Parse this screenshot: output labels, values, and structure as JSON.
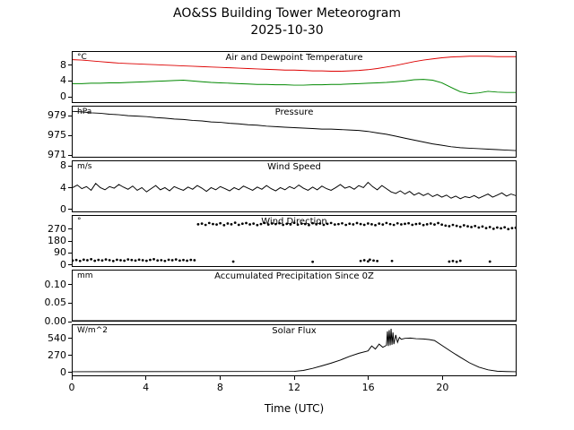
{
  "chart_data": {
    "type": "line",
    "title": "AO&SS Building Tower Meteorogram",
    "date": "2025-10-30",
    "xlabel": "Time (UTC)",
    "x_range": [
      0,
      24
    ],
    "xticks": [
      0,
      4,
      8,
      12,
      16,
      20
    ],
    "xtick_labels": [
      "0",
      "4",
      "8",
      "12",
      "16",
      "20"
    ],
    "grid": false,
    "legend": "none",
    "panels": [
      {
        "title": "Air and Dewpoint Temperature",
        "unit": "°C",
        "ylim": [
          -1.5,
          11.5
        ],
        "yticks": [
          0,
          4,
          8
        ],
        "ytick_labels": [
          "0",
          "4",
          "8"
        ],
        "series": [
          {
            "name": "air-temperature-line",
            "type": "line",
            "color": "#dd0000",
            "x_start": 0,
            "x_step": 0.5,
            "y": [
              9.5,
              9.4,
              9.2,
              9.0,
              8.8,
              8.6,
              8.5,
              8.4,
              8.3,
              8.2,
              8.1,
              8.0,
              7.9,
              7.8,
              7.7,
              7.6,
              7.5,
              7.4,
              7.3,
              7.2,
              7.1,
              7.0,
              6.9,
              6.8,
              6.8,
              6.7,
              6.6,
              6.6,
              6.5,
              6.5,
              6.6,
              6.7,
              6.9,
              7.2,
              7.6,
              8.0,
              8.5,
              9.0,
              9.4,
              9.7,
              10.0,
              10.2,
              10.3,
              10.4,
              10.4,
              10.4,
              10.3,
              10.3,
              10.3
            ]
          },
          {
            "name": "dewpoint-line",
            "type": "line",
            "color": "#008800",
            "x_start": 0,
            "x_step": 0.5,
            "y": [
              3.3,
              3.3,
              3.4,
              3.4,
              3.5,
              3.5,
              3.6,
              3.7,
              3.8,
              3.9,
              4.0,
              4.1,
              4.2,
              4.0,
              3.8,
              3.6,
              3.5,
              3.4,
              3.3,
              3.2,
              3.1,
              3.1,
              3.0,
              3.0,
              2.9,
              2.9,
              3.0,
              3.0,
              3.1,
              3.1,
              3.2,
              3.3,
              3.4,
              3.5,
              3.6,
              3.8,
              4.0,
              4.3,
              4.4,
              4.2,
              3.5,
              2.3,
              1.2,
              0.7,
              0.9,
              1.3,
              1.1,
              1.0,
              1.0
            ]
          }
        ]
      },
      {
        "title": "Pressure",
        "unit": "hPa",
        "ylim": [
          970.5,
          981
        ],
        "yticks": [
          971,
          975,
          979
        ],
        "ytick_labels": [
          "971",
          "975",
          "979"
        ],
        "series": [
          {
            "name": "pressure-line",
            "type": "line",
            "color": "#000000",
            "x_start": 0,
            "x_step": 0.5,
            "y": [
              980.0,
              979.9,
              979.7,
              979.6,
              979.4,
              979.3,
              979.1,
              979.0,
              978.9,
              978.7,
              978.6,
              978.4,
              978.3,
              978.1,
              978.0,
              977.8,
              977.7,
              977.5,
              977.4,
              977.2,
              977.1,
              976.9,
              976.8,
              976.7,
              976.6,
              976.5,
              976.4,
              976.3,
              976.3,
              976.2,
              976.1,
              976.0,
              975.8,
              975.5,
              975.2,
              974.8,
              974.4,
              974.0,
              973.6,
              973.2,
              972.9,
              972.6,
              972.4,
              972.3,
              972.2,
              972.1,
              972.0,
              971.9,
              971.8
            ]
          }
        ]
      },
      {
        "title": "Wind Speed",
        "unit": "m/s",
        "ylim": [
          -0.5,
          9
        ],
        "yticks": [
          0,
          4,
          8
        ],
        "ytick_labels": [
          "0",
          "4",
          "8"
        ],
        "series": [
          {
            "name": "wind-speed-line",
            "type": "line",
            "color": "#000000",
            "x_start": 0,
            "x_step": 0.25,
            "y": [
              4.0,
              4.5,
              3.8,
              4.2,
              3.5,
              4.8,
              4.0,
              3.6,
              4.2,
              3.9,
              4.6,
              4.1,
              3.7,
              4.3,
              3.5,
              4.0,
              3.2,
              3.8,
              4.4,
              3.6,
              4.0,
              3.4,
              4.2,
              3.8,
              3.5,
              4.1,
              3.7,
              4.4,
              3.9,
              3.3,
              4.0,
              3.6,
              4.2,
              3.8,
              3.4,
              4.0,
              3.6,
              4.3,
              3.9,
              3.5,
              4.1,
              3.7,
              4.4,
              3.8,
              3.4,
              4.0,
              3.6,
              4.2,
              3.8,
              4.5,
              3.9,
              3.5,
              4.1,
              3.6,
              4.3,
              3.8,
              3.5,
              4.0,
              4.6,
              3.9,
              4.2,
              3.7,
              4.4,
              4.0,
              5.0,
              4.2,
              3.6,
              4.4,
              3.8,
              3.2,
              2.9,
              3.4,
              2.8,
              3.3,
              2.6,
              3.0,
              2.5,
              2.9,
              2.3,
              2.7,
              2.2,
              2.6,
              2.0,
              2.4,
              1.9,
              2.3,
              2.1,
              2.5,
              2.0,
              2.4,
              2.8,
              2.2,
              2.6,
              3.0,
              2.4,
              2.8,
              2.5
            ]
          }
        ]
      },
      {
        "title": "Wind Direction",
        "unit": "°",
        "ylim": [
          -15,
          375
        ],
        "yticks": [
          0,
          90,
          180,
          270
        ],
        "ytick_labels": [
          "0",
          "90",
          "180",
          "270"
        ],
        "series": [
          {
            "name": "wind-direction-early-points",
            "type": "scatter",
            "color": "#000000",
            "x_start": 0,
            "x_step": 0.2,
            "y": [
              28,
              32,
              25,
              35,
              30,
              38,
              26,
              33,
              29,
              36,
              31,
              24,
              34,
              30,
              27,
              37,
              32,
              28,
              35,
              30,
              26,
              33,
              38,
              29,
              31,
              25,
              34,
              30,
              36,
              28,
              32,
              27,
              33,
              30
            ]
          },
          {
            "name": "wind-direction-main-points",
            "type": "scatter",
            "color": "#000000",
            "x_start": 6.8,
            "x_step": 0.2,
            "y": [
              310,
              315,
              305,
              320,
              312,
              308,
              318,
              303,
              316,
              310,
              322,
              306,
              314,
              319,
              309,
              315,
              304,
              312,
              320,
              308,
              316,
              311,
              318,
              305,
              313,
              309,
              321,
              307,
              315,
              312,
              304,
              318,
              310,
              316,
              306,
              313,
              320,
              308,
              311,
              317,
              305,
              314,
              309,
              319,
              312,
              306,
              316,
              310,
              303,
              315,
              308,
              320,
              311,
              305,
              317,
              309,
              313,
              318,
              306,
              312,
              315,
              304,
              310,
              316,
              308,
              319,
              307,
              300,
              295,
              305,
              298,
              290,
              302,
              294,
              288,
              296,
              285,
              292,
              280,
              288,
              275,
              284,
              278,
              286,
              272,
              280,
              283
            ]
          },
          {
            "name": "wind-direction-low-outlier-points",
            "type": "scatter",
            "color": "#000000",
            "x": [
              8.7,
              13.0,
              15.6,
              15.8,
              16.0,
              16.1,
              16.3,
              16.5,
              17.3,
              20.4,
              20.6,
              20.8,
              21.0,
              22.6
            ],
            "y": [
              20,
              18,
              25,
              30,
              22,
              35,
              28,
              24,
              25,
              20,
              24,
              18,
              26,
              20
            ]
          }
        ]
      },
      {
        "title": "Accumulated Precipitation Since 0Z",
        "unit": "mm",
        "ylim": [
          0,
          0.14
        ],
        "yticks": [
          0,
          0.05,
          0.1
        ],
        "ytick_labels": [
          "0.00",
          "0.05",
          "0.10"
        ],
        "series": [
          {
            "name": "precipitation-line",
            "type": "line",
            "color": "#000000",
            "x": [
              0,
              24
            ],
            "y": [
              0,
              0
            ]
          }
        ]
      },
      {
        "title": "Solar Flux",
        "unit": "W/m^2",
        "ylim": [
          -60,
          760
        ],
        "yticks": [
          0,
          270,
          540
        ],
        "ytick_labels": [
          "0",
          "270",
          "540"
        ],
        "series": [
          {
            "name": "solar-flux-line",
            "type": "line",
            "color": "#000000",
            "x": [
              0,
              12,
              12.5,
              13,
              13.5,
              14,
              14.5,
              15,
              15.5,
              16,
              16.2,
              16.4,
              16.6,
              16.8,
              17.0,
              17.05,
              17.1,
              17.15,
              17.2,
              17.25,
              17.3,
              17.35,
              17.4,
              17.5,
              17.6,
              17.7,
              17.8,
              18.0,
              18.3,
              18.6,
              19.0,
              19.3,
              19.6,
              20.0,
              20.5,
              21.0,
              21.5,
              22.0,
              22.5,
              23.0,
              23.5,
              24.0
            ],
            "y": [
              0,
              5,
              20,
              55,
              95,
              140,
              190,
              250,
              300,
              340,
              420,
              370,
              450,
              400,
              430,
              660,
              420,
              680,
              430,
              700,
              440,
              640,
              450,
              600,
              480,
              560,
              530,
              545,
              550,
              540,
              535,
              525,
              510,
              430,
              330,
              235,
              145,
              75,
              30,
              8,
              2,
              0
            ]
          }
        ]
      }
    ]
  }
}
